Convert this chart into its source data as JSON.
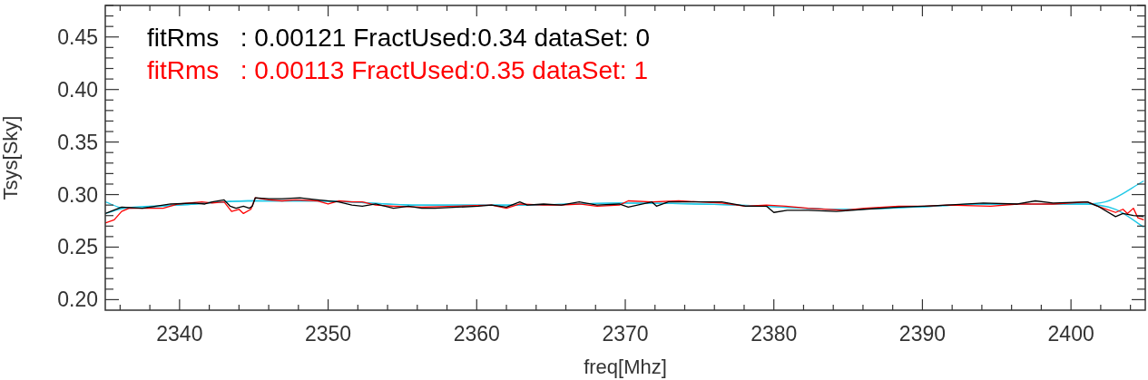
{
  "chart_data": {
    "type": "line",
    "xlabel": "freq[Mhz]",
    "ylabel": "Tsys[Sky]",
    "xlim": [
      2335,
      2405
    ],
    "xticks": [
      {
        "value": 2336,
        "label": null
      },
      {
        "value": 2338,
        "label": null
      },
      2340,
      {
        "value": 2342,
        "label": null
      },
      {
        "value": 2344,
        "label": null
      },
      {
        "value": 2346,
        "label": null
      },
      {
        "value": 2348,
        "label": null
      },
      2350,
      {
        "value": 2352,
        "label": null
      },
      {
        "value": 2354,
        "label": null
      },
      {
        "value": 2356,
        "label": null
      },
      {
        "value": 2358,
        "label": null
      },
      2360,
      {
        "value": 2362,
        "label": null
      },
      {
        "value": 2364,
        "label": null
      },
      {
        "value": 2366,
        "label": null
      },
      {
        "value": 2368,
        "label": null
      },
      2370,
      {
        "value": 2372,
        "label": null
      },
      {
        "value": 2374,
        "label": null
      },
      {
        "value": 2376,
        "label": null
      },
      {
        "value": 2378,
        "label": null
      },
      2380,
      {
        "value": 2382,
        "label": null
      },
      {
        "value": 2384,
        "label": null
      },
      {
        "value": 2386,
        "label": null
      },
      {
        "value": 2388,
        "label": null
      },
      2390,
      {
        "value": 2392,
        "label": null
      },
      {
        "value": 2394,
        "label": null
      },
      {
        "value": 2396,
        "label": null
      },
      {
        "value": 2398,
        "label": null
      },
      2400,
      {
        "value": 2402,
        "label": null
      },
      {
        "value": 2404,
        "label": null
      }
    ],
    "ylim": [
      0.19,
      0.48
    ],
    "yticks": [
      {
        "value": 0.2,
        "label": "0.20"
      },
      {
        "value": 0.21,
        "label": null
      },
      {
        "value": 0.22,
        "label": null
      },
      {
        "value": 0.23,
        "label": null
      },
      {
        "value": 0.24,
        "label": null
      },
      {
        "value": 0.25,
        "label": "0.25"
      },
      {
        "value": 0.26,
        "label": null
      },
      {
        "value": 0.27,
        "label": null
      },
      {
        "value": 0.28,
        "label": null
      },
      {
        "value": 0.29,
        "label": null
      },
      {
        "value": 0.3,
        "label": "0.30"
      },
      {
        "value": 0.31,
        "label": null
      },
      {
        "value": 0.32,
        "label": null
      },
      {
        "value": 0.33,
        "label": null
      },
      {
        "value": 0.34,
        "label": null
      },
      {
        "value": 0.35,
        "label": "0.35"
      },
      {
        "value": 0.36,
        "label": null
      },
      {
        "value": 0.37,
        "label": null
      },
      {
        "value": 0.38,
        "label": null
      },
      {
        "value": 0.39,
        "label": null
      },
      {
        "value": 0.4,
        "label": "0.40"
      },
      {
        "value": 0.41,
        "label": null
      },
      {
        "value": 0.42,
        "label": null
      },
      {
        "value": 0.43,
        "label": null
      },
      {
        "value": 0.44,
        "label": null
      },
      {
        "value": 0.45,
        "label": "0.45"
      },
      {
        "value": 0.46,
        "label": null
      },
      {
        "value": 0.47,
        "label": null
      },
      {
        "value": 0.48,
        "label": null
      }
    ],
    "grid": false,
    "legend": "top left",
    "marker": "none",
    "line_style": "solid",
    "series": [
      {
        "name": "fitRms   : 0.00121 FractUsed:0.34 dataSet: 0",
        "color": "#000000",
        "x": [
          2335.0,
          2336.1,
          2337.5,
          2339.4,
          2341.0,
          2341.7,
          2342.2,
          2343.0,
          2343.4,
          2343.8,
          2344.3,
          2344.7,
          2344.9,
          2345.1,
          2346.0,
          2346.9,
          2348.1,
          2349.3,
          2350.7,
          2351.6,
          2352.3,
          2353.2,
          2354.4,
          2355.4,
          2356.3,
          2357.2,
          2358.7,
          2360.1,
          2361.0,
          2362.0,
          2362.9,
          2363.4,
          2364.5,
          2365.7,
          2366.9,
          2368.1,
          2369.6,
          2370.2,
          2371.8,
          2372.1,
          2372.9,
          2376.5,
          2378.1,
          2379.5,
          2380.0,
          2380.9,
          2382.3,
          2384.2,
          2386.1,
          2388.4,
          2390.1,
          2391.7,
          2394.1,
          2396.4,
          2397.6,
          2398.8,
          2401.1,
          2401.8,
          2403.0,
          2403.5,
          2404.2,
          2404.9
        ],
        "values": [
          0.282,
          0.288,
          0.287,
          0.291,
          0.292,
          0.291,
          0.293,
          0.295,
          0.289,
          0.287,
          0.289,
          0.287,
          0.289,
          0.297,
          0.296,
          0.296,
          0.297,
          0.295,
          0.293,
          0.29,
          0.289,
          0.291,
          0.287,
          0.289,
          0.287,
          0.287,
          0.288,
          0.289,
          0.29,
          0.288,
          0.293,
          0.29,
          0.291,
          0.29,
          0.293,
          0.29,
          0.291,
          0.288,
          0.293,
          0.289,
          0.293,
          0.293,
          0.289,
          0.289,
          0.283,
          0.285,
          0.285,
          0.284,
          0.286,
          0.288,
          0.289,
          0.29,
          0.292,
          0.291,
          0.294,
          0.292,
          0.293,
          0.289,
          0.279,
          0.282,
          0.28,
          0.279
        ]
      },
      {
        "name": "fitRms   : 0.00113 FractUsed:0.35 dataSet: 1",
        "color": "#ff0000",
        "x": [
          2335.0,
          2335.6,
          2336.1,
          2336.6,
          2337.5,
          2338.9,
          2339.9,
          2341.5,
          2342.2,
          2343.0,
          2343.5,
          2344.0,
          2344.3,
          2344.8,
          2345.1,
          2346.0,
          2346.9,
          2347.8,
          2349.3,
          2350.0,
          2350.7,
          2351.6,
          2352.3,
          2353.2,
          2354.4,
          2356.3,
          2358.7,
          2361.0,
          2362.0,
          2362.9,
          2364.5,
          2365.7,
          2366.9,
          2368.1,
          2369.6,
          2370.2,
          2371.8,
          2373.6,
          2376.5,
          2378.1,
          2379.5,
          2380.8,
          2382.3,
          2384.7,
          2386.1,
          2388.4,
          2390.1,
          2391.7,
          2394.6,
          2396.4,
          2398.8,
          2401.1,
          2401.8,
          2403.0,
          2403.5,
          2403.8,
          2404.2,
          2404.5,
          2404.9
        ],
        "values": [
          0.273,
          0.276,
          0.284,
          0.287,
          0.287,
          0.287,
          0.291,
          0.293,
          0.292,
          0.293,
          0.284,
          0.286,
          0.282,
          0.286,
          0.297,
          0.295,
          0.294,
          0.295,
          0.294,
          0.291,
          0.294,
          0.293,
          0.293,
          0.29,
          0.289,
          0.288,
          0.289,
          0.29,
          0.287,
          0.291,
          0.29,
          0.29,
          0.291,
          0.289,
          0.29,
          0.294,
          0.293,
          0.294,
          0.292,
          0.289,
          0.29,
          0.289,
          0.287,
          0.285,
          0.287,
          0.289,
          0.289,
          0.29,
          0.289,
          0.291,
          0.291,
          0.293,
          0.289,
          0.283,
          0.286,
          0.282,
          0.287,
          0.278,
          0.276
        ]
      },
      {
        "color": "#1ec8e6",
        "x": [
          2335.0,
          2336.3,
          2339.9,
          2344.6,
          2349.3,
          2356.3,
          2363.4,
          2369.6,
          2377.6,
          2384.7,
          2389.4,
          2394.1,
          2400.7,
          2402.3,
          2404.9
        ],
        "values": [
          0.293,
          0.287,
          0.29,
          0.294,
          0.294,
          0.29,
          0.29,
          0.292,
          0.29,
          0.286,
          0.288,
          0.291,
          0.291,
          0.293,
          0.313
        ]
      },
      {
        "color": "#1ec8e6",
        "x": [
          2335.0,
          2336.3,
          2339.9,
          2344.6,
          2349.3,
          2356.3,
          2363.4,
          2369.6,
          2377.6,
          2384.7,
          2389.4,
          2394.1,
          2400.7,
          2403.0,
          2404.9
        ],
        "values": [
          0.282,
          0.287,
          0.29,
          0.294,
          0.294,
          0.29,
          0.29,
          0.292,
          0.29,
          0.286,
          0.288,
          0.291,
          0.291,
          0.286,
          0.269
        ]
      }
    ]
  }
}
